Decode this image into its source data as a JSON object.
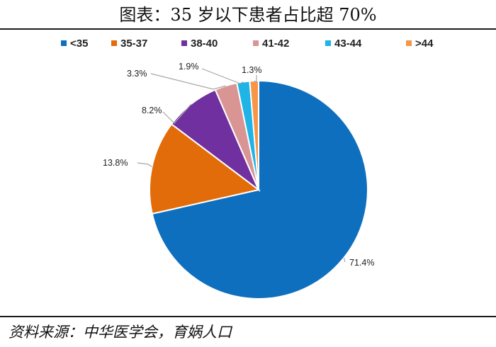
{
  "title": "图表：35 岁以下患者占比超 70%",
  "source": "资料来源：中华医学会，育娲人口",
  "chart_data": {
    "type": "pie",
    "title": "图表：35 岁以下患者占比超 70%",
    "legend_position": "top",
    "slices": [
      {
        "label": "<35",
        "value": 71.4,
        "display": "71.4%",
        "color": "#0F6FBF"
      },
      {
        "label": "35-37",
        "value": 13.8,
        "display": "13.8%",
        "color": "#E36C0A"
      },
      {
        "label": "38-40",
        "value": 8.2,
        "display": "8.2%",
        "color": "#7030A0"
      },
      {
        "label": "41-42",
        "value": 3.3,
        "display": "3.3%",
        "color": "#D99594"
      },
      {
        "label": "43-44",
        "value": 1.9,
        "display": "1.9%",
        "color": "#1FB3E6"
      },
      {
        "label": ">44",
        "value": 1.3,
        "display": "1.3%",
        "color": "#F79646"
      }
    ]
  }
}
